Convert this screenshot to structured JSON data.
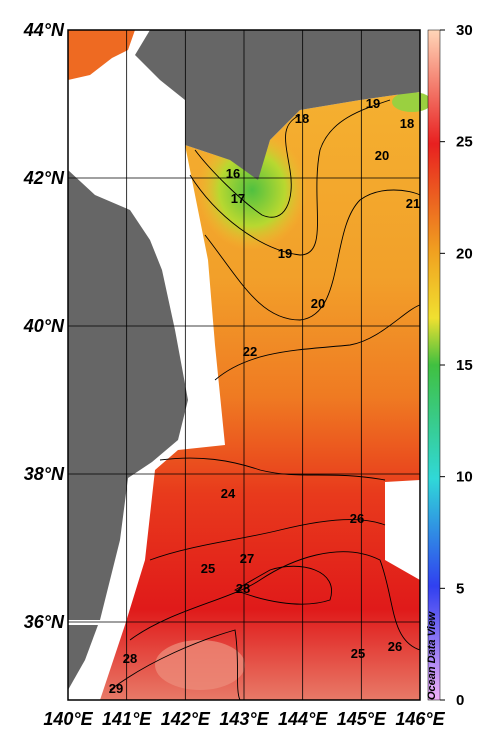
{
  "map": {
    "lon_ticks": [
      {
        "value": 140,
        "label": "140°E"
      },
      {
        "value": 141,
        "label": "141°E"
      },
      {
        "value": 142,
        "label": "142°E"
      },
      {
        "value": 143,
        "label": "143°E"
      },
      {
        "value": 144,
        "label": "144°E"
      },
      {
        "value": 145,
        "label": "145°E"
      },
      {
        "value": 146,
        "label": "146°E"
      }
    ],
    "lat_ticks": [
      {
        "value": 44,
        "label": "44°N"
      },
      {
        "value": 42,
        "label": "42°N"
      },
      {
        "value": 40,
        "label": "40°N"
      },
      {
        "value": 38,
        "label": "38°N"
      },
      {
        "value": 36,
        "label": "36°N"
      }
    ]
  },
  "colorbar": {
    "range": [
      0,
      30
    ],
    "ticks": [
      0,
      5,
      10,
      15,
      20,
      25,
      30
    ]
  },
  "contour_labels": [
    16,
    17,
    18,
    19,
    19,
    18,
    20,
    21,
    20,
    22,
    24,
    26,
    25,
    27,
    28,
    28,
    29,
    25,
    26
  ],
  "watermark": "Ocean Data View"
}
